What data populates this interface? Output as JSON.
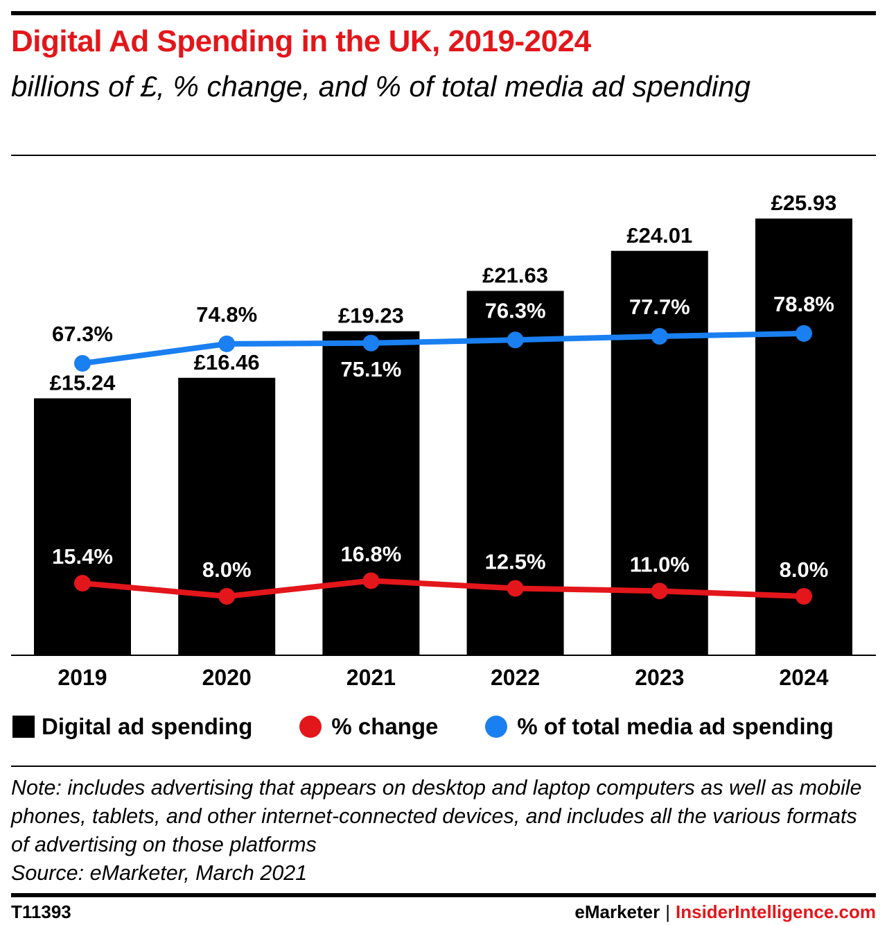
{
  "title": "Digital Ad Spending in the UK, 2019-2024",
  "subtitle": "billions of £, % change, and % of total media ad spending",
  "colors": {
    "title": "#e3161b",
    "bar": "#000000",
    "change_line": "#e3161b",
    "share_line": "#1a7ff0"
  },
  "chart_data": {
    "type": "bar",
    "categories": [
      "2019",
      "2020",
      "2021",
      "2022",
      "2023",
      "2024"
    ],
    "series": [
      {
        "name": "Digital ad spending",
        "type": "bar",
        "values": [
          15.24,
          16.46,
          19.23,
          21.63,
          24.01,
          25.93
        ],
        "labels": [
          "£15.24",
          "£16.46",
          "£19.23",
          "£21.63",
          "£24.01",
          "£25.93"
        ]
      },
      {
        "name": "% change",
        "type": "line",
        "values": [
          15.4,
          8.0,
          16.8,
          12.5,
          11.0,
          8.0
        ],
        "labels": [
          "15.4%",
          "8.0%",
          "16.8%",
          "12.5%",
          "11.0%",
          "8.0%"
        ]
      },
      {
        "name": "% of total media ad spending",
        "type": "line",
        "values": [
          67.3,
          74.8,
          75.1,
          76.3,
          77.7,
          78.8
        ],
        "labels": [
          "67.3%",
          "74.8%",
          "75.1%",
          "76.3%",
          "77.7%",
          "78.8%"
        ]
      }
    ],
    "legend_position": "bottom",
    "grid": false
  },
  "legend": {
    "bars": "Digital ad spending",
    "change": "% change",
    "share": "% of total media ad spending"
  },
  "note": "Note: includes advertising that appears on desktop and laptop computers as well as mobile phones, tablets, and other internet-connected devices, and includes all the various formats of advertising on those platforms",
  "source": "Source: eMarketer, March 2021",
  "footer": {
    "chart_id": "T11393",
    "brand_left": "eMarketer",
    "separator": "|",
    "brand_right": "InsiderIntelligence.com"
  }
}
